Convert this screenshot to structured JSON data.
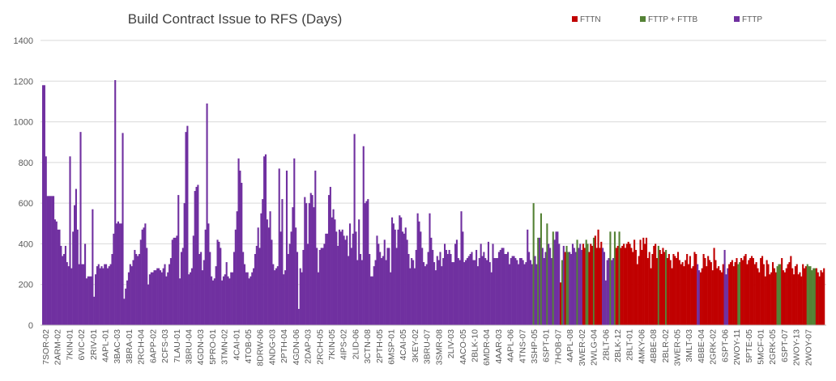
{
  "chart_data": {
    "type": "bar",
    "title": "Build Contract Issue to RFS (Days)",
    "xlabel": "",
    "ylabel": "",
    "ylim": [
      0,
      1400
    ],
    "yticks": [
      0,
      200,
      400,
      600,
      800,
      1000,
      1200,
      1400
    ],
    "grid": true,
    "legend_position": "top-right",
    "series": [
      {
        "name": "FTTN",
        "color": "#C00000"
      },
      {
        "name": "FTTP + FTTB",
        "color": "#548235"
      },
      {
        "name": "FTTP",
        "color": "#7030A0"
      }
    ],
    "labeled_categories": [
      "7SOR-02",
      "2ARM-02",
      "7KIN-01",
      "6VIC-02",
      "2RIV-01",
      "4APL-01",
      "3BAC-03",
      "3BRA-01",
      "2RCH-04",
      "6APP-02",
      "2CFS-03",
      "7LAU-01",
      "3BRU-04",
      "4GDN-03",
      "5PRO-01",
      "3TMN-02",
      "4CAI-01",
      "4TOB-05",
      "8DRW-06",
      "4NDG-03",
      "2PTH-04",
      "4GDN-06",
      "2DAP-03",
      "2RCH-05",
      "7KIN-05",
      "4IPS-02",
      "2LID-06",
      "3CTN-08",
      "2PTH-05",
      "6MSP-01",
      "4CAI-05",
      "3KEY-02",
      "3BRU-07",
      "3SMR-08",
      "2LIV-03",
      "4ACO-05",
      "2BLK-10",
      "6MDR-04",
      "4AAR-03",
      "4APL-06",
      "4TNS-07",
      "3SHP-05",
      "6SPT-01",
      "7HOB-07",
      "4APL-08",
      "3WER-02",
      "2WLG-04",
      "2BLT-06",
      "2BLK-12",
      "2BLT-01",
      "4MKY-06",
      "4BBE-08",
      "2BLR-02",
      "3WER-05",
      "3MLT-03",
      "4BBE-04",
      "2GRK-02",
      "6SPT-06",
      "2WOY-11",
      "5PTE-05",
      "5MCF-01",
      "2GRK-05",
      "6SPT-07",
      "2WOY-13",
      "2WOY-07"
    ],
    "segments": [
      {
        "series": "FTTP",
        "values": [
          1180,
          1180,
          830,
          635,
          635,
          635,
          635,
          635,
          520,
          510,
          470,
          470,
          390,
          340,
          350,
          390,
          310,
          290,
          830,
          280,
          460,
          590,
          670,
          470,
          300,
          950,
          300,
          300,
          400,
          230,
          240,
          240,
          240,
          570,
          140,
          250,
          290,
          300,
          280,
          290,
          280,
          300,
          300,
          280,
          290,
          300,
          350,
          450,
          1205,
          500,
          510,
          500,
          500,
          945,
          130,
          180,
          220,
          260,
          300,
          290,
          320,
          370,
          350,
          340,
          350,
          420,
          470,
          480,
          500,
          380,
          200,
          250,
          260,
          260,
          270,
          270,
          280,
          280,
          270,
          260,
          280,
          300,
          240,
          260,
          300,
          330,
          420,
          430,
          430,
          440,
          640,
          230,
          360,
          380,
          600,
          950,
          980,
          250,
          260,
          280,
          440,
          660,
          680,
          690,
          350,
          360,
          270,
          320,
          470,
          1090,
          500,
          360,
          240,
          220,
          230,
          290,
          420,
          410,
          380,
          220,
          240,
          250,
          310,
          240,
          230,
          260,
          260,
          360,
          470,
          560,
          820,
          760,
          700,
          360,
          300,
          260,
          260,
          230,
          240,
          260,
          280,
          350,
          390,
          480,
          380,
          550,
          620,
          830,
          840,
          520,
          480,
          560,
          420,
          300,
          270,
          280,
          290,
          770,
          460,
          620,
          250,
          270,
          760,
          350,
          400,
          460,
          580,
          820,
          480,
          360,
          80,
          280,
          260,
          370,
          630,
          600,
          400,
          600,
          650,
          640,
          580,
          760,
          380,
          260,
          370,
          380,
          380,
          400,
          450,
          450,
          640,
          680,
          530,
          570,
          520,
          460,
          390,
          470,
          460,
          470,
          440,
          420,
          440,
          340,
          500,
          380,
          450,
          940,
          460,
          320,
          520,
          350,
          320,
          880,
          600,
          610,
          620,
          350,
          240,
          240,
          290,
          320,
          440,
          400,
          360,
          330,
          340,
          420,
          320,
          380,
          380,
          260,
          530,
          500,
          470,
          380,
          470,
          540
        ]
      },
      {
        "series": "FTTP",
        "values": [
          530,
          460,
          450,
          480,
          420,
          350,
          280,
          330,
          320,
          280,
          370,
          550,
          510,
          460,
          380,
          310,
          290,
          300,
          360,
          550,
          430,
          370,
          310,
          270,
          340,
          320,
          360,
          290,
          330,
          400,
          370,
          350,
          370,
          350,
          310,
          310,
          400,
          420,
          330,
          320,
          560,
          460,
          310,
          320,
          330,
          340,
          350,
          360,
          320,
          320,
          370,
          290,
          330,
          400,
          340,
          360,
          330,
          320,
          410,
          310,
          260,
          400,
          330,
          330,
          330,
          360,
          370,
          380,
          380,
          350,
          350,
          360
        ]
      },
      {
        "series": "FTTP",
        "values": [
          300,
          330,
          340,
          340,
          330,
          320,
          300,
          330,
          330,
          320,
          300,
          310,
          470,
          360,
          320,
          300
        ]
      },
      {
        "series": "FTTP + FTTB",
        "values": [
          600
        ]
      },
      {
        "series": "FTTP",
        "values": [
          340,
          300
        ]
      },
      {
        "series": "FTTP + FTTB",
        "values": [
          430
        ]
      },
      {
        "series": "FTTP",
        "values": [
          430
        ]
      },
      {
        "series": "FTTP + FTTB",
        "values": [
          550
        ]
      },
      {
        "series": "FTTP",
        "values": [
          380,
          330,
          360
        ]
      },
      {
        "series": "FTTP + FTTB",
        "values": [
          500
        ]
      },
      {
        "series": "FTTP",
        "values": [
          400,
          380,
          330
        ]
      },
      {
        "series": "FTTP + FTTB",
        "values": [
          460
        ]
      },
      {
        "series": "FTTP",
        "values": [
          420,
          460,
          460,
          400
        ]
      },
      {
        "series": "FTTN",
        "values": [
          210
        ]
      },
      {
        "series": "FTTP + FTTB",
        "values": [
          320
        ]
      },
      {
        "series": "FTTP",
        "values": [
          390
        ]
      },
      {
        "series": "FTTN",
        "values": [
          360
        ]
      },
      {
        "series": "FTTP + FTTB",
        "values": [
          390,
          360
        ]
      },
      {
        "series": "FTTP",
        "values": [
          360,
          350,
          400,
          380,
          360
        ]
      },
      {
        "series": "FTTP + FTTB",
        "values": [
          420
        ]
      },
      {
        "series": "FTTP",
        "values": [
          380,
          400,
          370
        ]
      },
      {
        "series": "FTTN",
        "values": [
          400,
          380
        ]
      },
      {
        "series": "FTTP + FTTB",
        "values": [
          420,
          400
        ]
      },
      {
        "series": "FTTN",
        "values": [
          360,
          400,
          390
        ]
      },
      {
        "series": "FTTP + FTTB",
        "values": [
          430
        ]
      },
      {
        "series": "FTTN",
        "values": [
          440,
          380,
          470,
          380,
          410
        ]
      },
      {
        "series": "FTTP",
        "values": [
          380,
          360,
          220,
          320,
          330
        ]
      },
      {
        "series": "FTTP + FTTB",
        "values": [
          460
        ]
      },
      {
        "series": "FTTP",
        "values": [
          320,
          330
        ]
      },
      {
        "series": "FTTP + FTTB",
        "values": [
          460
        ]
      },
      {
        "series": "FTTN",
        "values": [
          380,
          390
        ]
      },
      {
        "series": "FTTP + FTTB",
        "values": [
          460
        ]
      },
      {
        "series": "FTTN",
        "values": [
          380,
          390,
          400,
          380,
          400,
          410,
          400,
          380,
          360,
          420,
          370,
          300,
          340,
          420,
          370,
          430,
          400,
          430,
          330,
          360,
          280,
          350,
          390,
          400,
          330
        ]
      },
      {
        "series": "FTTP + FTTB",
        "values": [
          390
        ]
      },
      {
        "series": "FTTN",
        "values": [
          370,
          350,
          380,
          360
        ]
      },
      {
        "series": "FTTP + FTTB",
        "values": [
          370
        ]
      },
      {
        "series": "FTTN",
        "values": [
          330,
          350,
          320,
          280,
          350,
          340,
          330,
          360,
          320,
          300,
          310,
          290,
          320,
          350,
          300,
          340,
          280,
          290,
          360,
          350
        ]
      },
      {
        "series": "FTTP",
        "values": [
          300,
          270
        ]
      },
      {
        "series": "FTTN",
        "values": [
          260,
          280,
          350,
          330,
          290,
          340,
          320,
          310,
          270,
          380,
          320,
          280,
          290,
          270,
          260,
          300
        ]
      },
      {
        "series": "FTTP",
        "values": [
          370,
          250,
          280
        ]
      },
      {
        "series": "FTTN",
        "values": [
          300,
          310,
          320,
          290,
          310,
          330
        ]
      },
      {
        "series": "FTTP + FTTB",
        "values": [
          300,
          310
        ]
      },
      {
        "series": "FTTN",
        "values": [
          330,
          320,
          340,
          350,
          300,
          320,
          330,
          340,
          330,
          300,
          310,
          280,
          260,
          330,
          340,
          300,
          240,
          320,
          300,
          250,
          260,
          310,
          280,
          260
        ]
      },
      {
        "series": "FTTP + FTTB",
        "values": [
          290,
          300,
          300
        ]
      },
      {
        "series": "FTTN",
        "values": [
          330,
          270,
          260,
          280,
          300,
          310,
          340,
          280,
          250,
          290,
          300,
          250,
          260,
          240,
          300,
          280,
          290
        ]
      },
      {
        "series": "FTTP + FTTB",
        "values": [
          300,
          290,
          290,
          270,
          280,
          280
        ]
      },
      {
        "series": "FTTN",
        "values": [
          280,
          260,
          240,
          270,
          260,
          280
        ]
      }
    ]
  }
}
